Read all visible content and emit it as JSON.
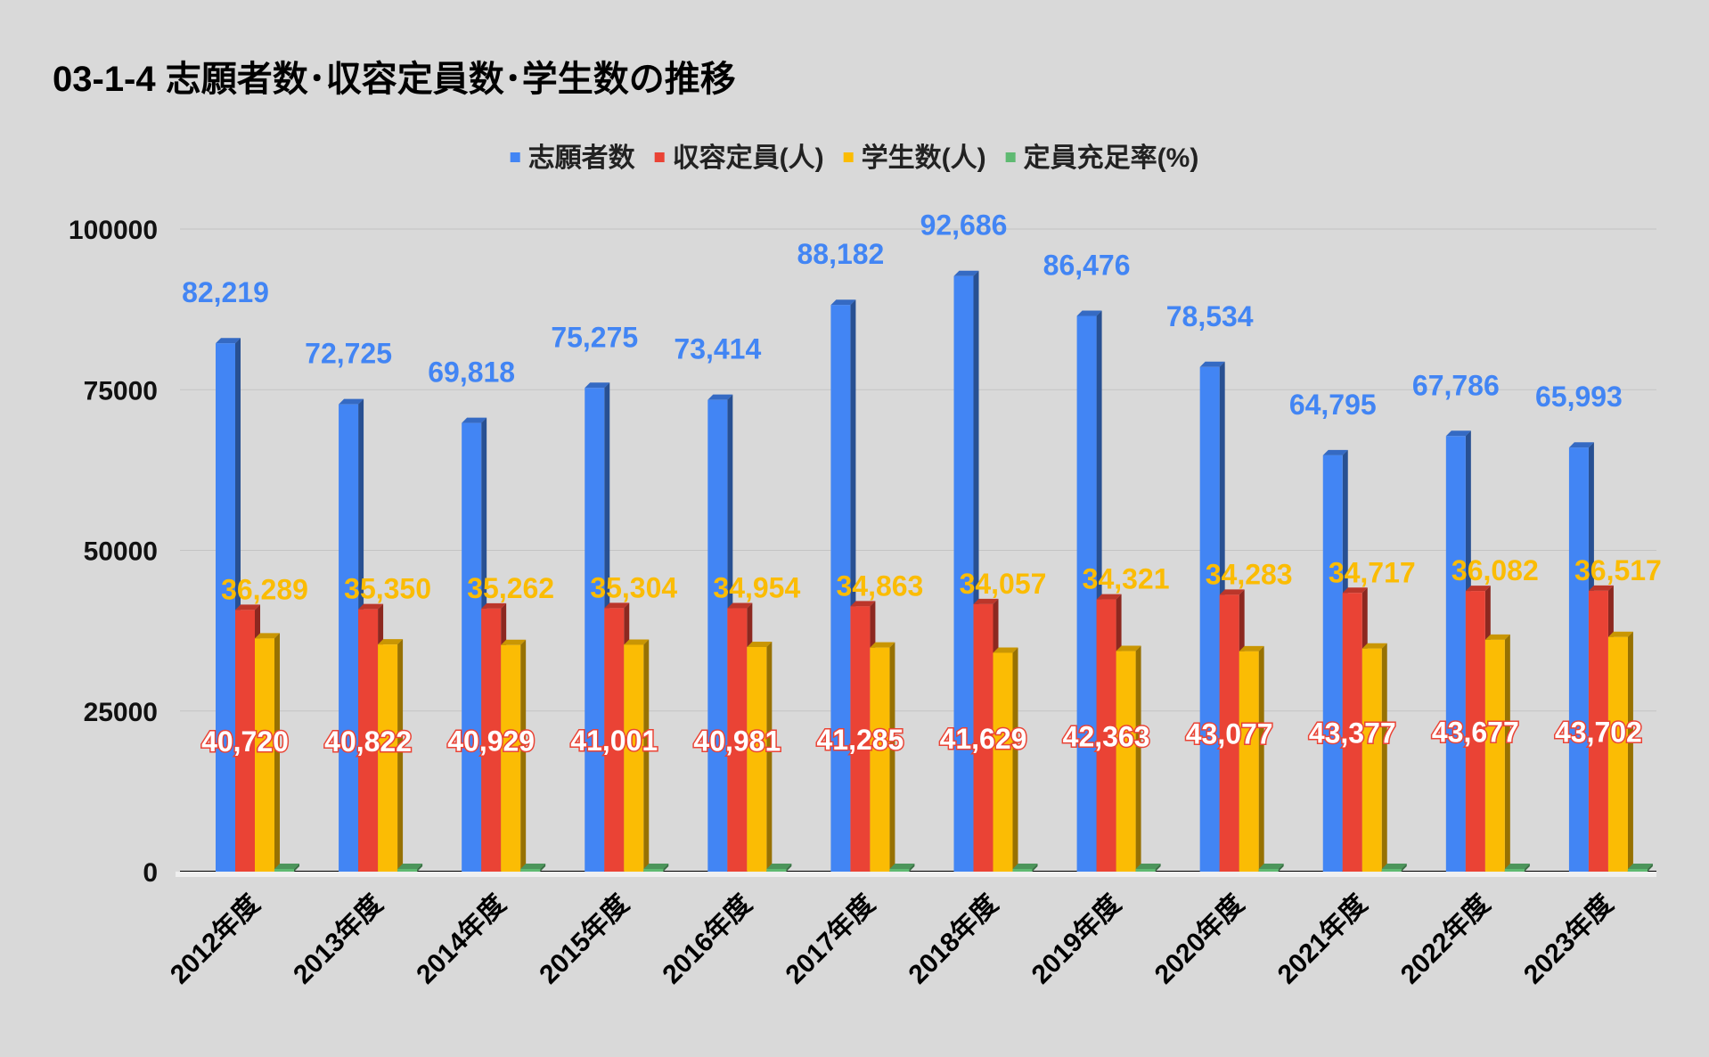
{
  "chart_data": {
    "type": "bar",
    "title": "03-1-4 志願者数･収容定員数･学生数の推移",
    "xlabel": "",
    "ylabel": "",
    "ylim": [
      0,
      100000
    ],
    "yticks": [
      "0",
      "25000",
      "50000",
      "75000",
      "100000"
    ],
    "ytick_values": [
      0,
      25000,
      50000,
      75000,
      100000
    ],
    "grid": true,
    "legend_position": "top",
    "categories": [
      "2012年度",
      "2013年度",
      "2014年度",
      "2015年度",
      "2016年度",
      "2017年度",
      "2018年度",
      "2019年度",
      "2020年度",
      "2021年度",
      "2022年度",
      "2023年度"
    ],
    "series": [
      {
        "name": "志願者数",
        "color": "#4285f4",
        "values": [
          82219,
          72725,
          69818,
          75275,
          73414,
          88182,
          92686,
          86476,
          78534,
          64795,
          67786,
          65993
        ],
        "labels": [
          "82,219",
          "72,725",
          "69,818",
          "75,275",
          "73,414",
          "88,182",
          "92,686",
          "86,476",
          "78,534",
          "64,795",
          "67,786",
          "65,993"
        ]
      },
      {
        "name": "収容定員(人)",
        "color": "#ea4335",
        "values": [
          40720,
          40822,
          40929,
          41001,
          40981,
          41285,
          41629,
          42363,
          43077,
          43377,
          43677,
          43702
        ],
        "labels": [
          "40,720",
          "40,822",
          "40,929",
          "41,001",
          "40,981",
          "41,285",
          "41,629",
          "42,363",
          "43,077",
          "43,377",
          "43,677",
          "43,702"
        ]
      },
      {
        "name": "学生数(人)",
        "color": "#fbbc04",
        "values": [
          36289,
          35350,
          35262,
          35304,
          34954,
          34863,
          34057,
          34321,
          34283,
          34717,
          36082,
          36517
        ],
        "labels": [
          "36,289",
          "35,350",
          "35,262",
          "35,304",
          "34,954",
          "34,863",
          "34,057",
          "34,321",
          "34,283",
          "34,717",
          "36,082",
          "36,517"
        ]
      },
      {
        "name": "定員充足率(%)",
        "color": "#5fba72",
        "values": [
          89.1,
          86.6,
          86.2,
          86.1,
          85.3,
          84.4,
          81.8,
          81.0,
          79.6,
          80.0,
          82.6,
          83.6
        ]
      }
    ]
  }
}
